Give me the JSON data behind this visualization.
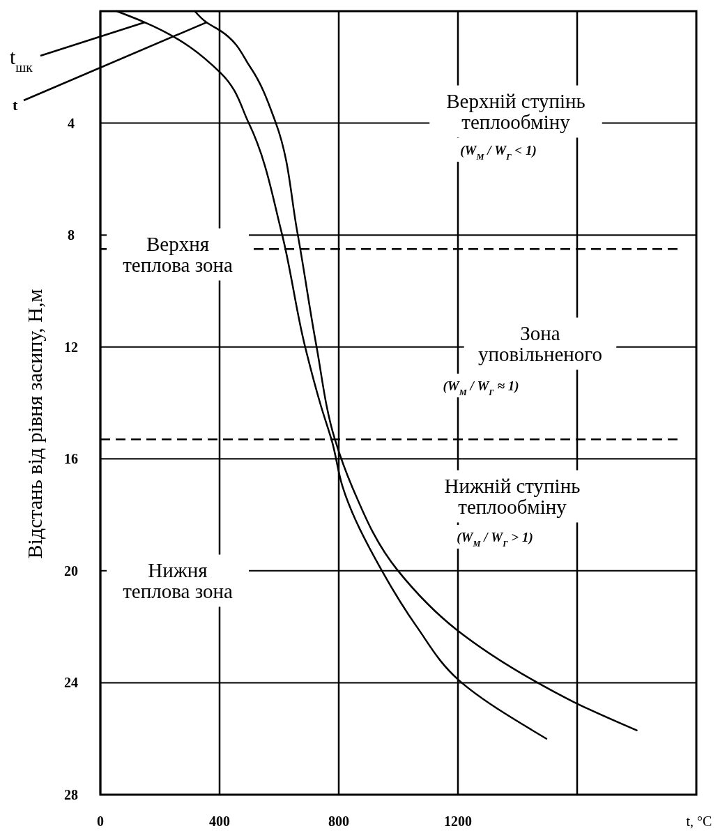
{
  "chart_data": {
    "type": "line",
    "xlabel": "t, °C",
    "ylabel": "Відстань від рівня засипу, Н,м",
    "xlim": [
      0,
      2000
    ],
    "ylim": [
      28,
      0
    ],
    "xticks": [
      0,
      400,
      800,
      1200,
      {
        "value": 1600,
        "label": null
      }
    ],
    "yticks": [
      4,
      8,
      12,
      16,
      20,
      24,
      28
    ],
    "grid": true,
    "marker": "none",
    "line_style": "solid",
    "series": [
      {
        "name": "t$_{шк}$",
        "color": "#000000",
        "x": [
          55,
          149,
          403,
          498,
          608,
          685,
          740,
          778,
          813,
          945,
          1062,
          1202,
          1497
        ],
        "values": [
          0,
          0.4,
          2.2,
          4,
          7.9,
          11.9,
          14.1,
          15.4,
          17,
          20,
          22,
          23.9,
          26
        ]
      },
      {
        "name": "t",
        "color": "#000000",
        "x": [
          317,
          356,
          403,
          503,
          589,
          661,
          724,
          787,
          845,
          999,
          1195,
          1451,
          1591,
          1800
        ],
        "values": [
          0,
          0.4,
          0.7,
          2,
          4,
          7.9,
          11.9,
          15.3,
          17,
          20,
          22.1,
          23.9,
          24.7,
          25.7
        ]
      }
    ],
    "ref_lines": [
      {
        "axis": "y",
        "value": 8.5,
        "line_style": "dashed"
      },
      {
        "axis": "y",
        "value": 15.3,
        "line_style": "dashed"
      }
    ],
    "annotations": [
      "Верхній ступінь\nтеплообміну",
      "(W$_{М}$ / W$_{Г}$ < 1)",
      "Верхня\nтеплова зона",
      "Зона\nуповільненого",
      "(W$_{М}$ / W$_{Г}$ ≈ 1)",
      "Нижній ступінь\nтеплообміну",
      "(W$_{М}$ / W$_{Г}$ > 1)",
      "Нижня\nтеплова зона"
    ]
  }
}
